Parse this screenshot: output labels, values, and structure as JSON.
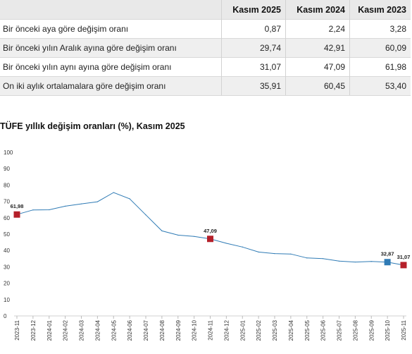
{
  "table": {
    "headers": [
      "",
      "Kasım 2025",
      "Kasım 2024",
      "Kasım 2023"
    ],
    "rows": [
      {
        "label": "Bir önceki aya göre değişim oranı",
        "values": [
          "0,87",
          "2,24",
          "3,28"
        ]
      },
      {
        "label": "Bir önceki yılın Aralık ayına göre değişim oranı",
        "values": [
          "29,74",
          "42,91",
          "60,09"
        ]
      },
      {
        "label": "Bir önceki yılın aynı ayına göre değişim oranı",
        "values": [
          "31,07",
          "47,09",
          "61,98"
        ]
      },
      {
        "label": "On iki aylık ortalamalara göre değişim oranı",
        "values": [
          "35,91",
          "60,45",
          "53,40"
        ]
      }
    ]
  },
  "chart_data": {
    "type": "line",
    "title": "TÜFE yıllık değişim oranları (%), Kasım 2025",
    "xlabel": "",
    "ylabel": "",
    "ylim": [
      0,
      100
    ],
    "yticks": [
      0,
      10,
      20,
      30,
      40,
      50,
      60,
      70,
      80,
      90,
      100
    ],
    "grid": false,
    "categories": [
      "2023-11",
      "2023-12",
      "2024-01",
      "2024-02",
      "2024-03",
      "2024-04",
      "2024-05",
      "2024-06",
      "2024-07",
      "2024-08",
      "2024-09",
      "2024-10",
      "2024-11",
      "2024-12",
      "2025-01",
      "2025-02",
      "2025-03",
      "2025-04",
      "2025-05",
      "2025-06",
      "2025-07",
      "2025-08",
      "2025-09",
      "2025-10",
      "2025-11"
    ],
    "series": [
      {
        "values": [
          61.98,
          64.77,
          64.86,
          67.07,
          68.5,
          69.8,
          75.45,
          71.6,
          61.78,
          51.97,
          49.38,
          48.58,
          47.09,
          44.38,
          42.12,
          39.05,
          38.1,
          37.86,
          35.41,
          35.05,
          33.52,
          32.95,
          33.29,
          32.87,
          31.07
        ],
        "color": "#2f7bb5"
      }
    ],
    "markers": [
      {
        "index": 0,
        "label": "61,98",
        "color": "#b5202a"
      },
      {
        "index": 12,
        "label": "47,09",
        "color": "#b5202a"
      },
      {
        "index": 23,
        "label": "32,87",
        "color": "#2f7bb5"
      },
      {
        "index": 24,
        "label": "31,07",
        "color": "#b5202a"
      }
    ]
  }
}
